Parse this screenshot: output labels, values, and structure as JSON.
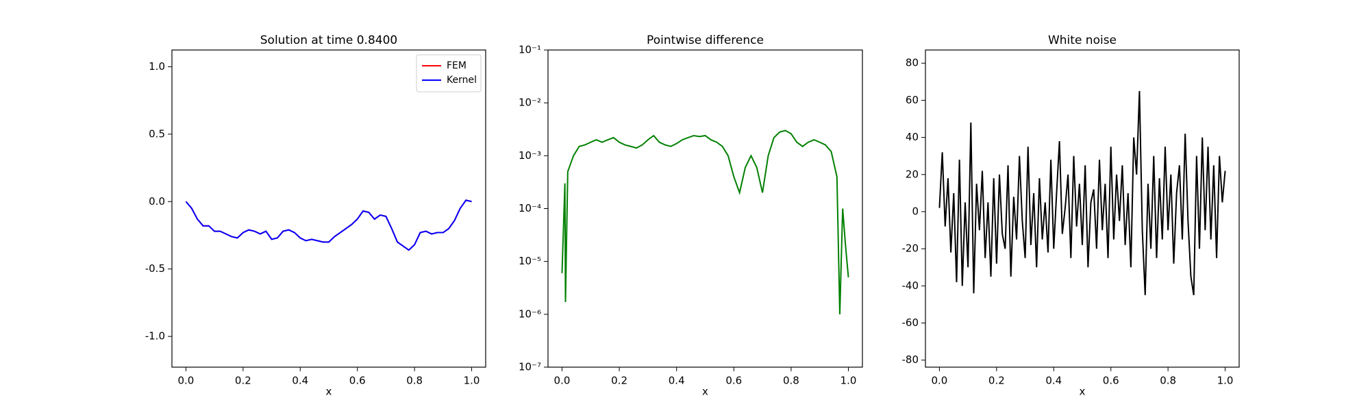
{
  "chart_data": [
    {
      "type": "line",
      "title": "Solution at time 0.8400",
      "xlabel": "x",
      "x": [
        0,
        0.02,
        0.04,
        0.06,
        0.08,
        0.1,
        0.12,
        0.14,
        0.16,
        0.18,
        0.2,
        0.22,
        0.24,
        0.26,
        0.28,
        0.3,
        0.32,
        0.34,
        0.36,
        0.38,
        0.4,
        0.42,
        0.44,
        0.46,
        0.48,
        0.5,
        0.52,
        0.54,
        0.56,
        0.58,
        0.6,
        0.62,
        0.64,
        0.66,
        0.68,
        0.7,
        0.72,
        0.74,
        0.76,
        0.78,
        0.8,
        0.82,
        0.84,
        0.86,
        0.88,
        0.9,
        0.92,
        0.94,
        0.96,
        0.98,
        1.0
      ],
      "series": [
        {
          "name": "FEM",
          "color": "#ff0000",
          "values": [
            0,
            -0.05,
            -0.13,
            -0.18,
            -0.18,
            -0.22,
            -0.22,
            -0.24,
            -0.26,
            -0.27,
            -0.23,
            -0.21,
            -0.22,
            -0.24,
            -0.22,
            -0.28,
            -0.27,
            -0.22,
            -0.21,
            -0.23,
            -0.27,
            -0.29,
            -0.28,
            -0.29,
            -0.3,
            -0.3,
            -0.26,
            -0.23,
            -0.2,
            -0.17,
            -0.13,
            -0.07,
            -0.08,
            -0.13,
            -0.1,
            -0.11,
            -0.2,
            -0.3,
            -0.33,
            -0.36,
            -0.32,
            -0.23,
            -0.22,
            -0.24,
            -0.23,
            -0.23,
            -0.2,
            -0.14,
            -0.05,
            0.01,
            0
          ]
        },
        {
          "name": "Kernel",
          "color": "#0000ff",
          "values": [
            0,
            -0.05,
            -0.13,
            -0.18,
            -0.18,
            -0.22,
            -0.22,
            -0.24,
            -0.26,
            -0.27,
            -0.23,
            -0.21,
            -0.22,
            -0.24,
            -0.22,
            -0.28,
            -0.27,
            -0.22,
            -0.21,
            -0.23,
            -0.27,
            -0.29,
            -0.28,
            -0.29,
            -0.3,
            -0.3,
            -0.26,
            -0.23,
            -0.2,
            -0.17,
            -0.13,
            -0.07,
            -0.08,
            -0.13,
            -0.1,
            -0.11,
            -0.2,
            -0.3,
            -0.33,
            -0.36,
            -0.32,
            -0.23,
            -0.22,
            -0.24,
            -0.23,
            -0.23,
            -0.2,
            -0.14,
            -0.05,
            0.01,
            0
          ]
        }
      ],
      "xlim": [
        -0.049,
        1.049
      ],
      "xticks": [
        {
          "value": 0,
          "label": "0.0"
        },
        0.2,
        0.4,
        0.6,
        0.8,
        {
          "value": 1,
          "label": "1.0"
        }
      ],
      "ylim": [
        -1.228,
        1.124
      ],
      "yticks": [
        {
          "value": -1,
          "label": "-1.0"
        },
        -0.5,
        {
          "value": 0,
          "label": "0.0"
        },
        0.5,
        {
          "value": 1,
          "label": "1.0"
        }
      ],
      "legend": "upper right"
    },
    {
      "type": "line",
      "title": "Pointwise difference",
      "xlabel": "x",
      "yscale": "log",
      "x": [
        0,
        0.01,
        0.012,
        0.02,
        0.04,
        0.06,
        0.08,
        0.1,
        0.12,
        0.14,
        0.16,
        0.18,
        0.2,
        0.22,
        0.24,
        0.26,
        0.28,
        0.3,
        0.32,
        0.34,
        0.36,
        0.38,
        0.4,
        0.42,
        0.44,
        0.46,
        0.48,
        0.5,
        0.52,
        0.54,
        0.56,
        0.58,
        0.6,
        0.62,
        0.64,
        0.66,
        0.68,
        0.7,
        0.72,
        0.74,
        0.76,
        0.78,
        0.8,
        0.82,
        0.84,
        0.86,
        0.88,
        0.9,
        0.92,
        0.94,
        0.96,
        0.97,
        0.98,
        0.99,
        1.0
      ],
      "series": [
        {
          "color": "#008000",
          "values": [
            6e-06,
            0.0003,
            1.7e-06,
            0.0005,
            0.001,
            0.0015,
            0.0016,
            0.0018,
            0.002,
            0.0018,
            0.002,
            0.0022,
            0.0018,
            0.0016,
            0.0015,
            0.0014,
            0.0016,
            0.002,
            0.0024,
            0.0018,
            0.0016,
            0.0015,
            0.0017,
            0.002,
            0.0022,
            0.0024,
            0.0023,
            0.0024,
            0.002,
            0.0018,
            0.0015,
            0.001,
            0.0004,
            0.0002,
            0.0006,
            0.001,
            0.0006,
            0.0002,
            0.001,
            0.0022,
            0.0028,
            0.003,
            0.0026,
            0.0018,
            0.0015,
            0.0018,
            0.002,
            0.0018,
            0.0016,
            0.0012,
            0.0004,
            1e-06,
            0.0001,
            2e-05,
            5e-06
          ]
        }
      ],
      "xlim": [
        -0.049,
        1.049
      ],
      "xticks": [
        {
          "value": 0,
          "label": "0.0"
        },
        0.2,
        0.4,
        0.6,
        0.8,
        {
          "value": 1,
          "label": "1.0"
        }
      ],
      "ylim": [
        1e-07,
        0.1
      ],
      "yticks": [
        {
          "value": 1e-07,
          "label": "10⁻⁷"
        },
        {
          "value": 1e-06,
          "label": "10⁻⁶"
        },
        {
          "value": 1e-05,
          "label": "10⁻⁵"
        },
        {
          "value": 0.0001,
          "label": "10⁻⁴"
        },
        {
          "value": 0.001,
          "label": "10⁻³"
        },
        {
          "value": 0.01,
          "label": "10⁻²"
        },
        {
          "value": 0.1,
          "label": "10⁻¹"
        }
      ]
    },
    {
      "type": "line",
      "title": "White noise",
      "xlabel": "x",
      "x": [
        0,
        0.01,
        0.02,
        0.03,
        0.04,
        0.05,
        0.06,
        0.07,
        0.08,
        0.09,
        0.1,
        0.11,
        0.12,
        0.13,
        0.14,
        0.15,
        0.16,
        0.17,
        0.18,
        0.19,
        0.2,
        0.21,
        0.22,
        0.23,
        0.24,
        0.25,
        0.26,
        0.27,
        0.28,
        0.29,
        0.3,
        0.31,
        0.32,
        0.33,
        0.34,
        0.35,
        0.36,
        0.37,
        0.38,
        0.39,
        0.4,
        0.41,
        0.42,
        0.43,
        0.44,
        0.45,
        0.46,
        0.47,
        0.48,
        0.49,
        0.5,
        0.51,
        0.52,
        0.53,
        0.54,
        0.55,
        0.56,
        0.57,
        0.58,
        0.59,
        0.6,
        0.61,
        0.62,
        0.63,
        0.64,
        0.65,
        0.66,
        0.67,
        0.68,
        0.69,
        0.7,
        0.71,
        0.72,
        0.73,
        0.74,
        0.75,
        0.76,
        0.77,
        0.78,
        0.79,
        0.8,
        0.81,
        0.82,
        0.83,
        0.84,
        0.85,
        0.86,
        0.87,
        0.88,
        0.89,
        0.9,
        0.91,
        0.92,
        0.93,
        0.94,
        0.95,
        0.96,
        0.97,
        0.98,
        0.99,
        1.0
      ],
      "series": [
        {
          "color": "#000000",
          "values": [
            2,
            32,
            -8,
            18,
            -22,
            10,
            -38,
            28,
            -40,
            5,
            -30,
            48,
            -44,
            15,
            -10,
            22,
            -25,
            5,
            -35,
            18,
            -28,
            20,
            -12,
            -20,
            25,
            -35,
            8,
            -15,
            30,
            -5,
            -25,
            35,
            -18,
            10,
            -30,
            18,
            -15,
            5,
            -22,
            28,
            -20,
            10,
            38,
            -12,
            2,
            20,
            -25,
            30,
            -8,
            15,
            -18,
            25,
            -30,
            5,
            12,
            -20,
            28,
            -10,
            15,
            -25,
            35,
            -15,
            20,
            -5,
            25,
            -18,
            10,
            -30,
            40,
            20,
            65,
            -10,
            -45,
            15,
            -20,
            30,
            -25,
            18,
            -15,
            35,
            -10,
            20,
            -28,
            10,
            25,
            -15,
            42,
            -5,
            -35,
            -45,
            30,
            -20,
            40,
            -10,
            35,
            -15,
            25,
            -25,
            30,
            5,
            22
          ]
        }
      ],
      "xlim": [
        -0.049,
        1.049
      ],
      "xticks": [
        {
          "value": 0,
          "label": "0.0"
        },
        0.2,
        0.4,
        0.6,
        0.8,
        {
          "value": 1,
          "label": "1.0"
        }
      ],
      "ylim": [
        -83.8,
        87.1
      ],
      "yticks": [
        -80,
        -60,
        -40,
        -20,
        0,
        20,
        40,
        60,
        80
      ]
    }
  ]
}
